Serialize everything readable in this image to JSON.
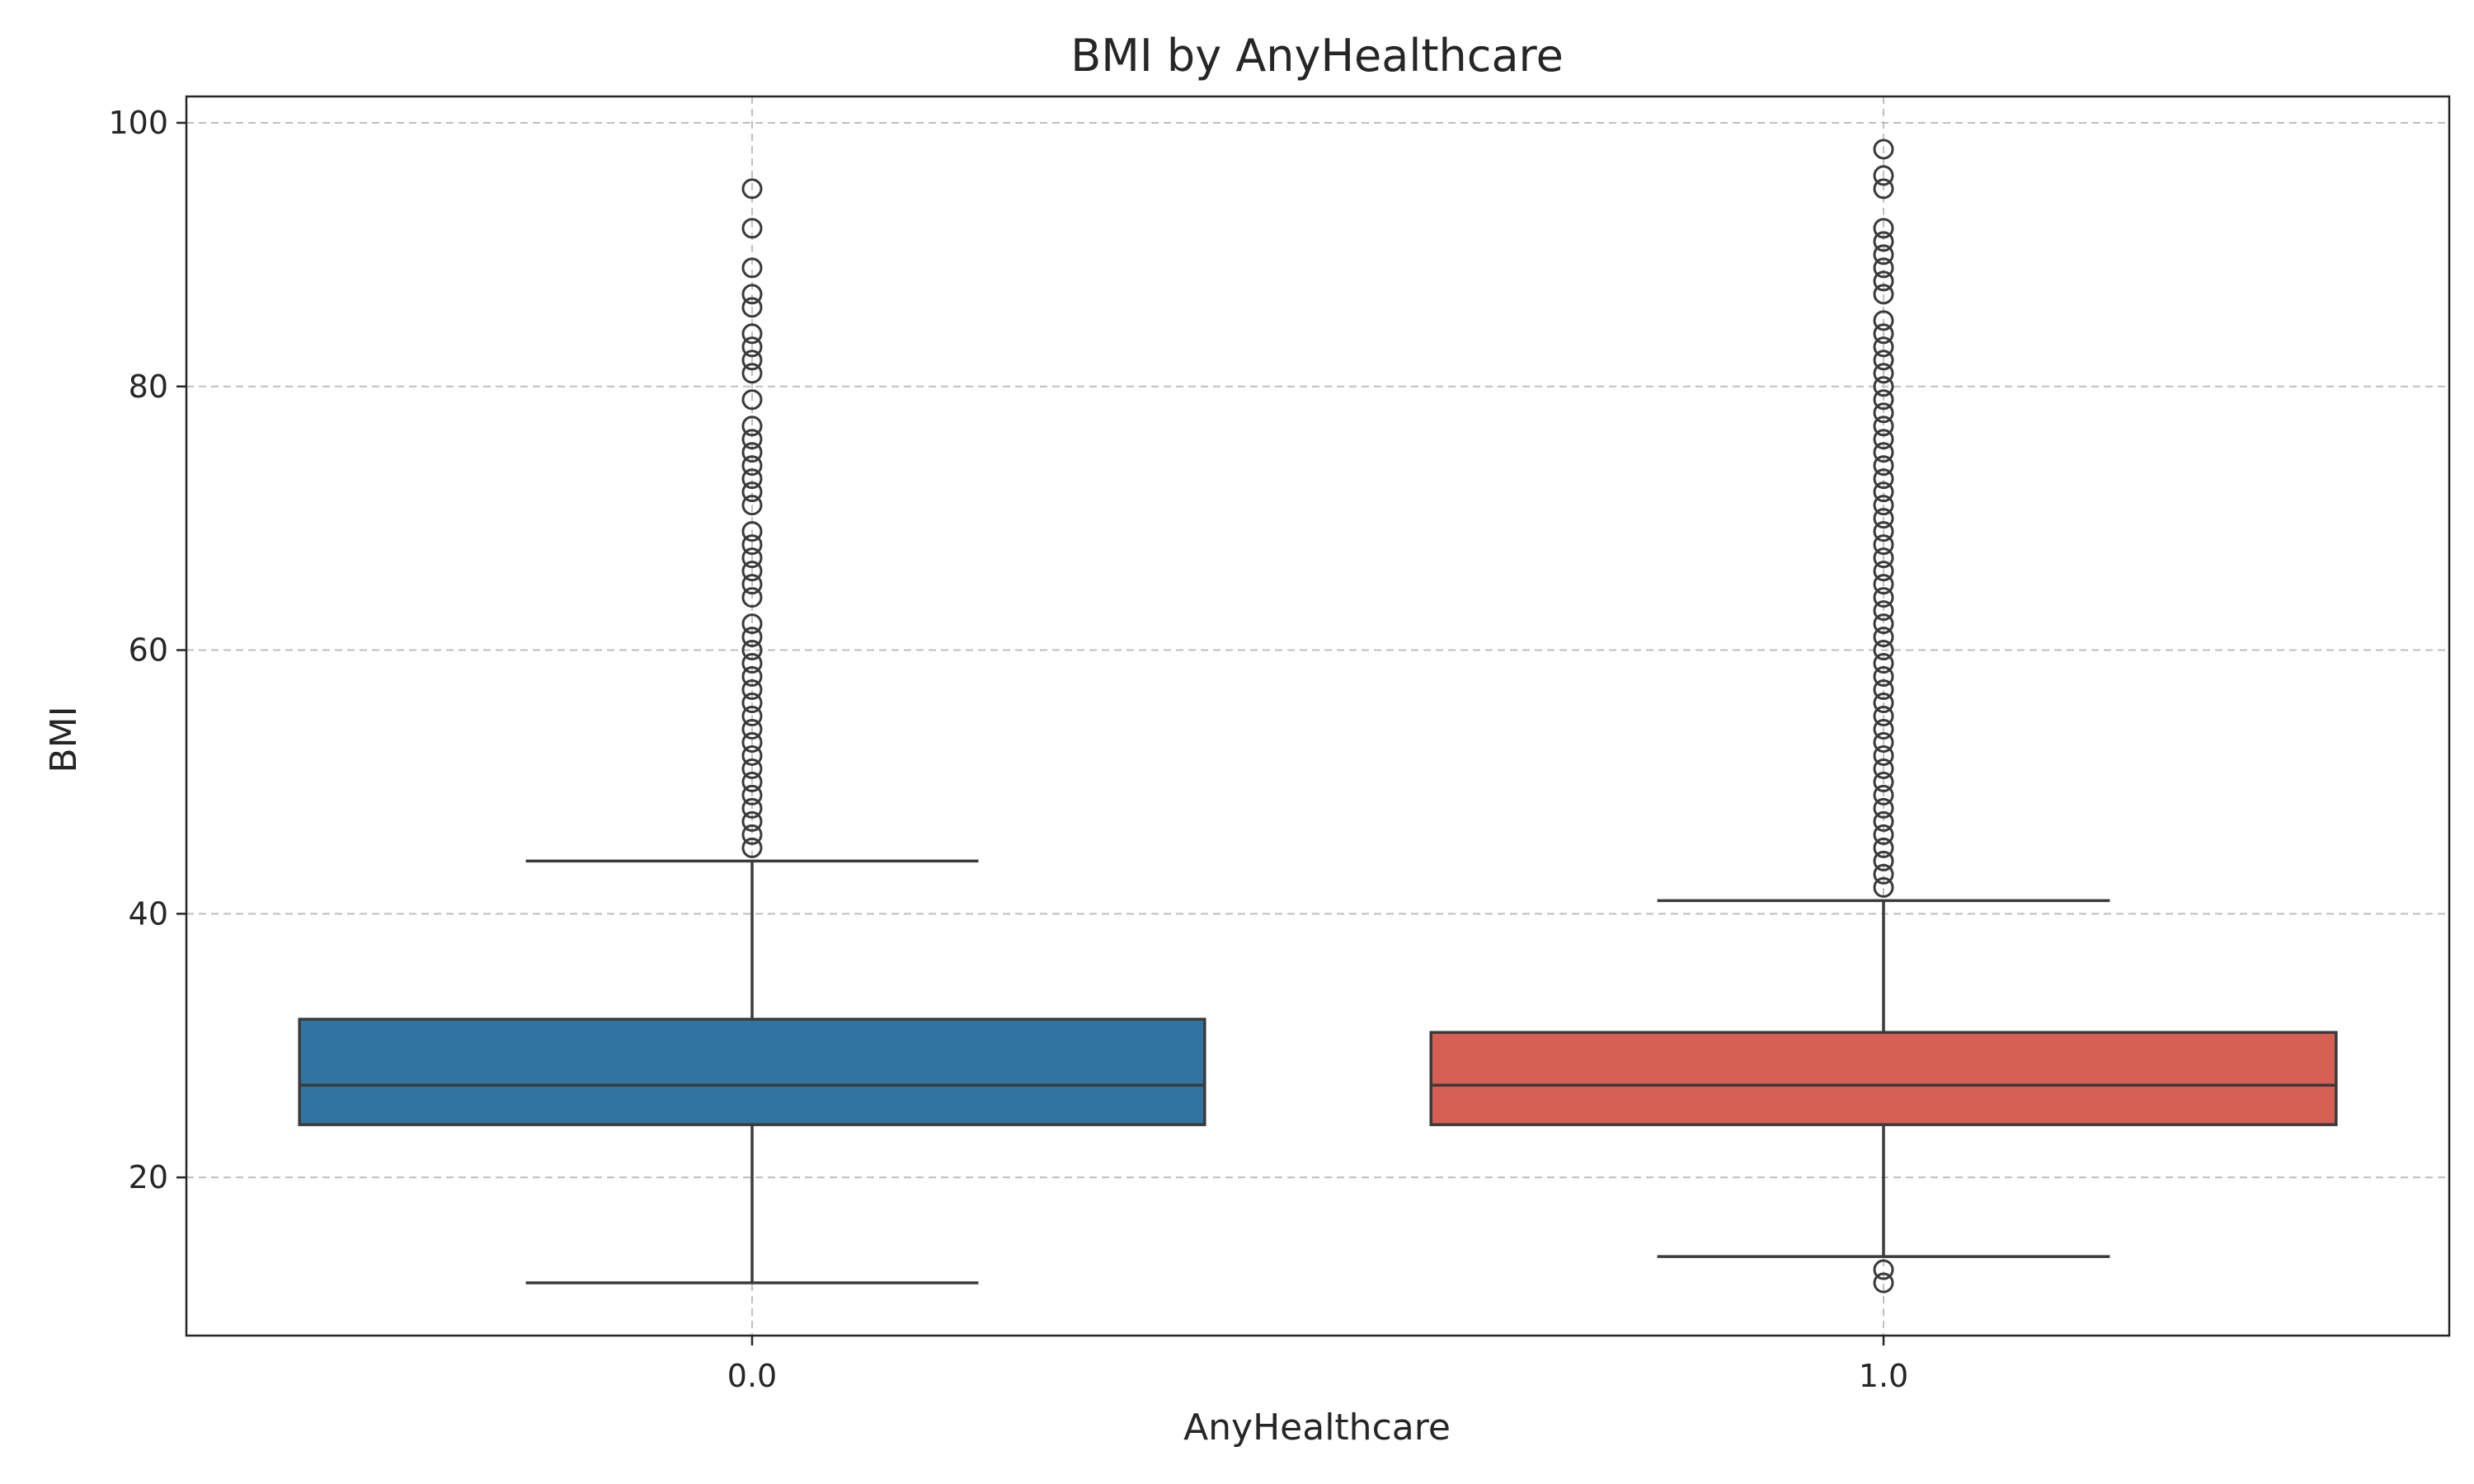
{
  "chart_data": {
    "type": "box",
    "title": "BMI by AnyHealthcare",
    "xlabel": "AnyHealthcare",
    "ylabel": "BMI",
    "categories": [
      "0.0",
      "1.0"
    ],
    "ylim": [
      8,
      102
    ],
    "yticks": [
      20,
      40,
      60,
      80,
      100
    ],
    "grid": true,
    "colors": [
      "#3274a1",
      "#d45f52"
    ],
    "boxes": [
      {
        "category": "0.0",
        "whisker_low": 12,
        "q1": 24,
        "median": 27,
        "q3": 32,
        "whisker_high": 44,
        "fliers": [
          45,
          46,
          47,
          48,
          49,
          50,
          51,
          52,
          53,
          54,
          55,
          56,
          57,
          58,
          59,
          60,
          61,
          62,
          64,
          65,
          66,
          67,
          68,
          69,
          71,
          72,
          73,
          74,
          75,
          76,
          77,
          79,
          81,
          82,
          83,
          84,
          86,
          87,
          89,
          92,
          95
        ]
      },
      {
        "category": "1.0",
        "whisker_low": 14,
        "q1": 24,
        "median": 27,
        "q3": 31,
        "whisker_high": 41,
        "fliers": [
          12,
          13,
          42,
          43,
          44,
          45,
          46,
          47,
          48,
          49,
          50,
          51,
          52,
          53,
          54,
          55,
          56,
          57,
          58,
          59,
          60,
          61,
          62,
          63,
          64,
          65,
          66,
          67,
          68,
          69,
          70,
          71,
          72,
          73,
          74,
          75,
          76,
          77,
          78,
          79,
          80,
          81,
          82,
          83,
          84,
          85,
          87,
          88,
          89,
          90,
          91,
          92,
          95,
          96,
          98
        ]
      }
    ]
  }
}
